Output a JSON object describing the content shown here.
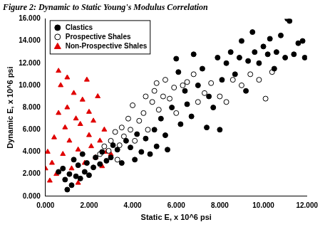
{
  "chart_data": {
    "type": "scatter",
    "title": "Figure 2: Dynamic to Static Young's Modulus Correlation",
    "x_label": "Static E, x 10^6 psi",
    "y_label": "Dynamic E, x 10^6 psi",
    "xlim": [
      0,
      12
    ],
    "xticks": [
      {
        "value": 0,
        "label": "0.000"
      },
      {
        "value": 2,
        "label": "2.000"
      },
      {
        "value": 4,
        "label": "4.000"
      },
      {
        "value": 6,
        "label": "6.000"
      },
      {
        "value": 8,
        "label": "8.000"
      },
      {
        "value": 10,
        "label": "10.000"
      },
      {
        "value": 12,
        "label": "12.000"
      }
    ],
    "ylim": [
      0,
      16
    ],
    "yticks": [
      {
        "value": 0,
        "label": "0.000"
      },
      {
        "value": 2,
        "label": "2.000"
      },
      {
        "value": 4,
        "label": "4.000"
      },
      {
        "value": 6,
        "label": "6.000"
      },
      {
        "value": 8,
        "label": "8.000"
      },
      {
        "value": 10,
        "label": "10.000"
      },
      {
        "value": 12,
        "label": "12.000"
      },
      {
        "value": 14,
        "label": "14.000"
      },
      {
        "value": 16,
        "label": "16.000"
      }
    ],
    "grid": false,
    "legend": "upper left",
    "series": [
      {
        "name": "Clastics",
        "color": "#000000",
        "marker": "circle",
        "x": [
          0.6,
          0.8,
          0.9,
          1.0,
          1.1,
          1.2,
          1.3,
          1.4,
          1.5,
          1.6,
          1.7,
          1.8,
          1.9,
          2.0,
          2.2,
          2.3,
          2.5,
          2.6,
          2.8,
          3.0,
          3.1,
          3.3,
          3.5,
          3.7,
          3.9,
          4.1,
          4.2,
          4.4,
          4.6,
          4.8,
          5.0,
          5.1,
          5.3,
          5.5,
          5.6,
          5.8,
          6.0,
          6.1,
          6.2,
          6.4,
          6.5,
          6.7,
          6.8,
          7.0,
          7.2,
          7.4,
          7.5,
          7.7,
          7.9,
          8.0,
          8.1,
          8.3,
          8.5,
          8.7,
          8.9,
          9.0,
          9.2,
          9.3,
          9.5,
          9.6,
          9.8,
          10.0,
          10.2,
          10.3,
          10.5,
          10.6,
          10.8,
          11.0,
          11.1,
          11.2,
          11.4,
          11.6,
          11.8,
          11.9
        ],
        "values": [
          2.2,
          2.5,
          1.5,
          0.6,
          2.0,
          1.0,
          3.3,
          1.8,
          2.8,
          1.6,
          3.8,
          2.2,
          3.0,
          1.9,
          2.6,
          3.5,
          2.9,
          4.0,
          3.2,
          3.5,
          4.6,
          4.2,
          3.0,
          5.0,
          4.4,
          3.3,
          5.6,
          4.0,
          5.2,
          3.8,
          6.0,
          4.5,
          7.0,
          5.5,
          4.2,
          8.0,
          12.4,
          11.2,
          6.5,
          9.5,
          8.3,
          7.2,
          12.8,
          10.0,
          11.5,
          6.2,
          9.0,
          8.0,
          12.5,
          6.0,
          10.5,
          12.0,
          13.0,
          11.0,
          12.5,
          14.0,
          9.5,
          12.2,
          14.8,
          13.0,
          12.0,
          13.5,
          12.8,
          14.2,
          11.5,
          13.0,
          14.5,
          12.5,
          16.0,
          15.8,
          12.8,
          13.8,
          14.0,
          12.5
        ]
      },
      {
        "name": "Prospective Shales",
        "color": "#ffffff",
        "marker": "circle",
        "x": [
          2.5,
          2.7,
          2.9,
          3.0,
          3.2,
          3.3,
          3.4,
          3.5,
          3.6,
          3.8,
          3.9,
          4.0,
          4.1,
          4.3,
          4.5,
          4.6,
          4.7,
          4.9,
          5.0,
          5.1,
          5.2,
          5.4,
          5.5,
          5.7,
          5.9,
          6.0,
          6.3,
          6.5,
          6.8,
          7.0,
          7.3,
          7.6,
          8.0,
          8.3,
          8.6,
          9.0,
          9.4,
          9.8,
          10.1,
          10.4
        ],
        "values": [
          3.8,
          4.5,
          4.1,
          5.0,
          5.8,
          3.3,
          4.6,
          6.2,
          5.4,
          7.0,
          6.0,
          8.2,
          5.0,
          6.8,
          7.5,
          9.0,
          6.0,
          8.5,
          9.5,
          10.2,
          7.8,
          9.0,
          10.5,
          8.8,
          9.8,
          7.5,
          10.0,
          10.3,
          11.0,
          8.5,
          9.3,
          10.2,
          9.0,
          8.5,
          10.5,
          10.0,
          11.0,
          10.5,
          8.8,
          11.2
        ]
      },
      {
        "name": "Non-Prospective Shales",
        "color": "#e00000",
        "marker": "triangle",
        "x": [
          0.0,
          0.1,
          0.2,
          0.3,
          0.4,
          0.5,
          0.6,
          0.6,
          0.7,
          0.8,
          0.9,
          1.0,
          1.0,
          1.1,
          1.2,
          1.3,
          1.4,
          1.5,
          1.5,
          1.6,
          1.7,
          1.8,
          1.9,
          2.0,
          2.0,
          2.1,
          2.2,
          2.3,
          2.4,
          2.5,
          2.6,
          2.7,
          2.8,
          3.0
        ],
        "values": [
          2.5,
          4.0,
          1.4,
          3.0,
          5.3,
          2.0,
          11.3,
          7.5,
          10.0,
          3.8,
          6.2,
          8.0,
          10.7,
          5.0,
          2.5,
          9.3,
          7.0,
          4.2,
          1.2,
          6.5,
          8.7,
          3.0,
          10.5,
          7.6,
          5.5,
          4.5,
          6.8,
          3.5,
          9.0,
          5.0,
          2.7,
          6.0,
          4.0,
          3.8
        ]
      }
    ]
  }
}
